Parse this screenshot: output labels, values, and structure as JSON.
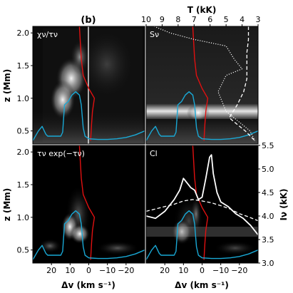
{
  "figure_label": "(b)",
  "panel_labels": {
    "top_left": "χν/τν",
    "top_right": "Sν",
    "bottom_left": "τν exp(−τν)",
    "bottom_right": "Cl"
  },
  "axis_titles": {
    "y_left": "z (Mm)",
    "x_bottom": "Δv (km s⁻¹)",
    "x_top": "T (kK)",
    "y_right": "Iν (kK)"
  },
  "ticks": {
    "z": [
      "0.5",
      "1.0",
      "1.5",
      "2.0"
    ],
    "dv": [
      "20",
      "10",
      "0",
      "−10",
      "−20"
    ],
    "T": [
      "10",
      "9",
      "8",
      "7",
      "6",
      "5",
      "4",
      "3"
    ],
    "I": [
      "3.0",
      "3.5",
      "4.0",
      "4.5",
      "5.0",
      "5.5"
    ]
  },
  "colors": {
    "cyan": "#19a9d6",
    "red": "#e01010",
    "white": "#ffffff",
    "background": "#000000"
  },
  "chart_data": [
    {
      "type": "heatmap",
      "panel": "top-left",
      "title": "χν/τν",
      "xlabel": "",
      "ylabel": "z (Mm)",
      "xlim": [
        30,
        -30
      ],
      "ylim": [
        0.3,
        2.1
      ],
      "series": [
        {
          "name": "velocity",
          "color": "#e01010",
          "x": [
            -1,
            -1.5,
            -2,
            -3,
            0,
            3,
            4,
            4.5,
            5
          ],
          "y": [
            0.35,
            0.6,
            0.8,
            1.0,
            1.15,
            1.35,
            1.6,
            1.85,
            2.1
          ]
        },
        {
          "name": "tau_unity",
          "color": "#19a9d6",
          "x": [
            30,
            27,
            25,
            23,
            22,
            15,
            14,
            13,
            11,
            9,
            7,
            5,
            4,
            3,
            2,
            0,
            -5,
            -10,
            -15,
            -20,
            -25,
            -30
          ],
          "y": [
            0.35,
            0.5,
            0.57,
            0.45,
            0.42,
            0.42,
            0.48,
            0.9,
            0.95,
            1.05,
            1.1,
            1.05,
            0.9,
            0.55,
            0.42,
            0.38,
            0.37,
            0.37,
            0.38,
            0.4,
            0.44,
            0.5
          ]
        }
      ],
      "vline_x": 0
    },
    {
      "type": "heatmap",
      "panel": "top-right",
      "title": "Sν",
      "xlabel": "T (kK)",
      "ylabel": "",
      "xlim": [
        30,
        -30
      ],
      "ylim": [
        0.3,
        2.1
      ],
      "series": [
        {
          "name": "velocity",
          "color": "#e01010",
          "x": [
            -1,
            -1.5,
            -2,
            -3,
            0,
            3,
            4,
            4.5,
            5
          ],
          "y": [
            0.35,
            0.6,
            0.8,
            1.0,
            1.15,
            1.35,
            1.6,
            1.85,
            2.1
          ]
        },
        {
          "name": "tau_unity",
          "color": "#19a9d6",
          "x": [
            30,
            27,
            25,
            23,
            22,
            15,
            14,
            13,
            11,
            9,
            7,
            5,
            4,
            3,
            2,
            0,
            -5,
            -10,
            -15,
            -20,
            -25,
            -30
          ],
          "y": [
            0.35,
            0.5,
            0.57,
            0.45,
            0.42,
            0.42,
            0.48,
            0.9,
            0.95,
            1.05,
            1.1,
            1.05,
            0.9,
            0.55,
            0.42,
            0.38,
            0.37,
            0.37,
            0.38,
            0.4,
            0.44,
            0.5
          ]
        },
        {
          "name": "temperature_dotted",
          "color": "#ffffff",
          "axis": "T",
          "x": [
            9.5,
            8.5,
            7,
            6,
            5,
            4.5,
            4,
            5,
            5.5,
            5,
            4,
            3.5,
            3.2
          ],
          "y": [
            2.1,
            2.0,
            1.9,
            1.85,
            1.8,
            1.6,
            1.45,
            1.35,
            1.1,
            0.8,
            0.6,
            0.5,
            0.35
          ]
        },
        {
          "name": "temperature_dashed",
          "color": "#ffffff",
          "axis": "T",
          "x": [
            3.6,
            3.6,
            3.7,
            3.7,
            3.7,
            3.9,
            4.3,
            4.8,
            4.3,
            3.8,
            3.4,
            3.2
          ],
          "y": [
            2.1,
            1.9,
            1.7,
            1.5,
            1.3,
            1.1,
            0.9,
            0.7,
            0.6,
            0.5,
            0.4,
            0.35
          ]
        }
      ]
    },
    {
      "type": "heatmap",
      "panel": "bottom-left",
      "title": "τν exp(−τν)",
      "xlabel": "Δv (km s⁻¹)",
      "ylabel": "z (Mm)",
      "xlim": [
        30,
        -30
      ],
      "ylim": [
        0.3,
        2.1
      ],
      "series": [
        {
          "name": "velocity",
          "color": "#e01010",
          "x": [
            -1,
            -1.5,
            -2,
            -3,
            0,
            3,
            4,
            4.5,
            5
          ],
          "y": [
            0.35,
            0.6,
            0.8,
            1.0,
            1.15,
            1.35,
            1.6,
            1.85,
            2.1
          ]
        },
        {
          "name": "tau_unity",
          "color": "#19a9d6",
          "x": [
            30,
            27,
            25,
            23,
            22,
            15,
            14,
            13,
            11,
            9,
            7,
            5,
            4,
            3,
            2,
            0,
            -5,
            -10,
            -15,
            -20,
            -25,
            -30
          ],
          "y": [
            0.35,
            0.5,
            0.57,
            0.45,
            0.42,
            0.42,
            0.48,
            0.9,
            0.95,
            1.05,
            1.1,
            1.05,
            0.9,
            0.55,
            0.42,
            0.38,
            0.37,
            0.37,
            0.38,
            0.4,
            0.44,
            0.5
          ]
        }
      ]
    },
    {
      "type": "heatmap",
      "panel": "bottom-right",
      "title": "Cl",
      "xlabel": "Δv (km s⁻¹)",
      "ylabel": "Iν (kK)",
      "xlim": [
        30,
        -30
      ],
      "ylim": [
        3.0,
        5.5
      ],
      "series": [
        {
          "name": "velocity",
          "color": "#e01010",
          "x": [
            -1,
            -1.5,
            -2,
            -3,
            0,
            3,
            4,
            4.5,
            5
          ],
          "y": [
            0.35,
            0.6,
            0.8,
            1.0,
            1.15,
            1.35,
            1.6,
            1.85,
            2.1
          ]
        },
        {
          "name": "tau_unity",
          "color": "#19a9d6",
          "x": [
            30,
            27,
            25,
            23,
            22,
            15,
            14,
            13,
            11,
            9,
            7,
            5,
            4,
            3,
            2,
            0,
            -5,
            -10,
            -15,
            -20,
            -25,
            -30
          ],
          "y": [
            0.35,
            0.5,
            0.57,
            0.45,
            0.42,
            0.42,
            0.48,
            0.9,
            0.95,
            1.05,
            1.1,
            1.05,
            0.9,
            0.55,
            0.42,
            0.38,
            0.37,
            0.37,
            0.38,
            0.4,
            0.44,
            0.5
          ]
        },
        {
          "name": "intensity_solid",
          "color": "#ffffff",
          "axis": "I",
          "x": [
            30,
            25,
            20,
            15,
            12,
            10,
            8,
            6,
            4,
            2,
            0,
            -2,
            -4,
            -5,
            -6,
            -8,
            -10,
            -14,
            -18,
            -22,
            -26,
            -30
          ],
          "y": [
            4.0,
            3.95,
            4.1,
            4.35,
            4.55,
            4.8,
            4.7,
            4.6,
            4.55,
            4.35,
            4.4,
            4.8,
            5.25,
            5.3,
            4.9,
            4.5,
            4.3,
            4.2,
            4.05,
            3.95,
            3.8,
            3.6
          ]
        },
        {
          "name": "intensity_dashed",
          "color": "#ffffff",
          "axis": "I",
          "x": [
            30,
            25,
            20,
            15,
            10,
            5,
            0,
            -5,
            -10,
            -15,
            -20,
            -25,
            -30
          ],
          "y": [
            4.1,
            4.15,
            4.2,
            4.25,
            4.32,
            4.35,
            4.32,
            4.28,
            4.22,
            4.15,
            4.05,
            3.98,
            3.9
          ]
        }
      ]
    }
  ]
}
